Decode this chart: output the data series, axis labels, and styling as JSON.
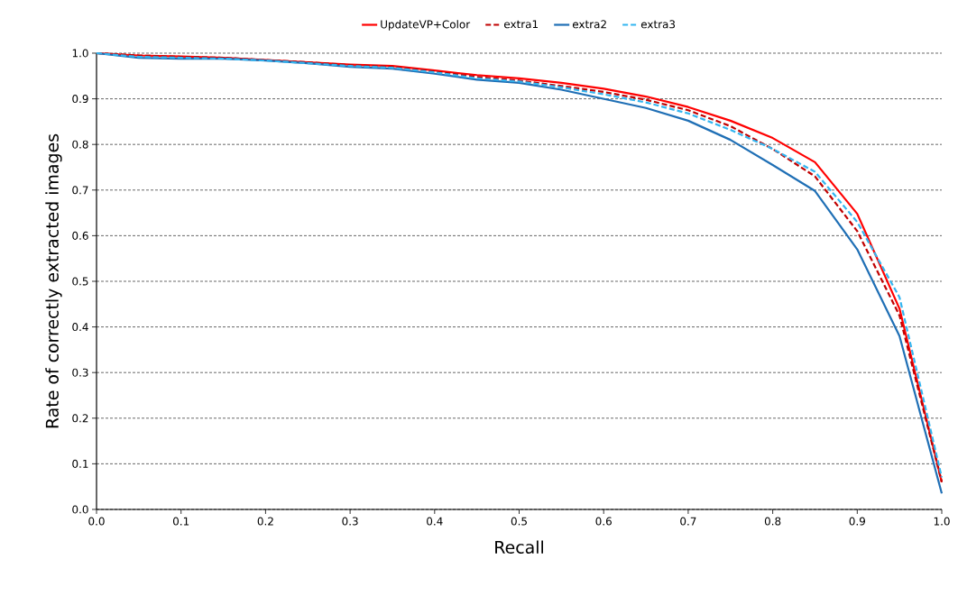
{
  "chart_data": {
    "type": "line",
    "xlabel": "Recall",
    "ylabel": "Rate of correctly extracted images",
    "x": [
      0,
      0.05,
      0.1,
      0.15,
      0.2,
      0.25,
      0.3,
      0.35,
      0.4,
      0.45,
      0.5,
      0.55,
      0.6,
      0.65,
      0.7,
      0.75,
      0.8,
      0.85,
      0.9,
      0.95,
      1.0
    ],
    "series": [
      {
        "name": "UpdateVP+Color",
        "color": "#ff0000",
        "line_style": "solid",
        "values": [
          1.0,
          0.995,
          0.993,
          0.99,
          0.985,
          0.98,
          0.975,
          0.972,
          0.962,
          0.952,
          0.945,
          0.935,
          0.922,
          0.905,
          0.882,
          0.852,
          0.814,
          0.761,
          0.648,
          0.44,
          0.06
        ]
      },
      {
        "name": "extra1",
        "color": "#c00000",
        "line_style": "dashed",
        "values": [
          1.0,
          0.995,
          0.992,
          0.99,
          0.985,
          0.98,
          0.974,
          0.97,
          0.96,
          0.948,
          0.94,
          0.928,
          0.915,
          0.898,
          0.875,
          0.84,
          0.79,
          0.73,
          0.61,
          0.425,
          0.06
        ]
      },
      {
        "name": "extra2",
        "color": "#1f6fb5",
        "line_style": "solid",
        "values": [
          1.0,
          0.99,
          0.988,
          0.988,
          0.984,
          0.978,
          0.97,
          0.966,
          0.955,
          0.942,
          0.935,
          0.92,
          0.9,
          0.88,
          0.852,
          0.81,
          0.755,
          0.698,
          0.57,
          0.38,
          0.035
        ]
      },
      {
        "name": "extra3",
        "color": "#33b5f0",
        "line_style": "dashed",
        "values": [
          1.0,
          0.992,
          0.99,
          0.988,
          0.984,
          0.978,
          0.972,
          0.968,
          0.958,
          0.945,
          0.938,
          0.925,
          0.91,
          0.892,
          0.868,
          0.832,
          0.79,
          0.74,
          0.63,
          0.465,
          0.07
        ]
      }
    ],
    "xlim": [
      0,
      1
    ],
    "ylim": [
      0,
      1
    ],
    "xticks": [
      {
        "value": 0,
        "label": "0.0"
      },
      0.1,
      0.2,
      0.3,
      0.4,
      0.5,
      0.6,
      0.7,
      0.8,
      0.9,
      {
        "value": 1,
        "label": "1.0"
      }
    ],
    "yticks": [
      {
        "value": 0,
        "label": "0.0"
      },
      0.1,
      0.2,
      0.3,
      0.4,
      0.5,
      0.6,
      0.7,
      0.8,
      0.9,
      {
        "value": 1,
        "label": "1.0"
      }
    ],
    "grid": "y",
    "legend": "top",
    "marker": "none"
  }
}
